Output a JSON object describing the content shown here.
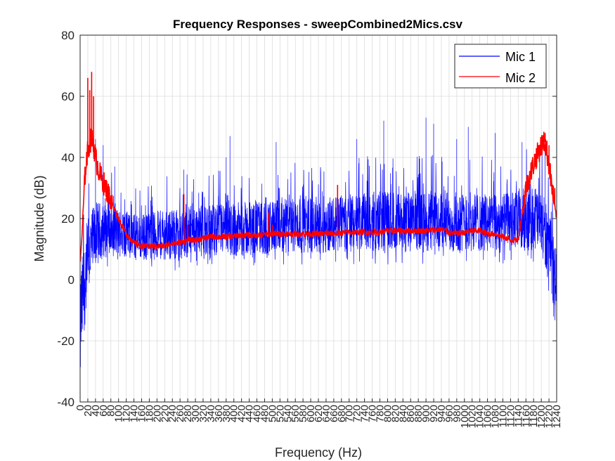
{
  "chart_data": {
    "type": "line",
    "title": "Frequency Responses - sweepCombined2Mics.csv",
    "xlabel": "Frequency (Hz)",
    "ylabel": "Magnitude (dB)",
    "xlim": [
      0,
      1240
    ],
    "ylim": [
      -40,
      80
    ],
    "yticks": [
      -40,
      -20,
      0,
      20,
      40,
      60,
      80
    ],
    "xticks": [
      0,
      20,
      40,
      60,
      80,
      100,
      120,
      140,
      160,
      180,
      200,
      220,
      240,
      260,
      280,
      300,
      320,
      340,
      360,
      380,
      400,
      420,
      440,
      460,
      480,
      500,
      520,
      540,
      560,
      580,
      600,
      620,
      640,
      660,
      680,
      700,
      720,
      740,
      760,
      780,
      800,
      820,
      840,
      860,
      880,
      900,
      920,
      940,
      960,
      980,
      1000,
      1020,
      1040,
      1060,
      1080,
      1100,
      1120,
      1140,
      1160,
      1180,
      1200,
      1220,
      1240
    ],
    "grid": true,
    "legend_position": "top-right",
    "series": [
      {
        "name": "Mic 1",
        "color": "#0000ff",
        "style": "noisy band",
        "x": [
          0,
          10,
          20,
          40,
          60,
          80,
          100,
          120,
          140,
          160,
          200,
          260,
          300,
          400,
          500,
          600,
          700,
          800,
          900,
          1000,
          1100,
          1150,
          1180,
          1200,
          1220,
          1230,
          1240
        ],
        "upper": [
          10,
          20,
          26,
          30,
          29,
          28,
          27,
          26,
          25,
          25,
          26,
          27,
          28,
          29,
          30,
          31,
          32,
          33,
          33,
          33,
          32,
          34,
          36,
          35,
          27,
          20,
          14
        ],
        "lower": [
          -38,
          -25,
          -12,
          0,
          3,
          4,
          4,
          4,
          3,
          3,
          3,
          3,
          4,
          4,
          4,
          5,
          5,
          5,
          5,
          5,
          5,
          5,
          5,
          3,
          -5,
          -12,
          -18
        ],
        "peaks": [
          [
            40,
            46
          ],
          [
            60,
            44
          ],
          [
            90,
            37
          ],
          [
            270,
            36
          ],
          [
            380,
            40
          ],
          [
            390,
            47
          ],
          [
            510,
            45
          ],
          [
            720,
            46
          ],
          [
            790,
            52
          ],
          [
            900,
            53
          ],
          [
            920,
            51
          ],
          [
            980,
            46
          ],
          [
            1010,
            50
          ],
          [
            1080,
            48
          ],
          [
            1150,
            45
          ],
          [
            1210,
            44
          ]
        ]
      },
      {
        "name": "Mic 2",
        "color": "#ff0000",
        "style": "thick noisy line",
        "x": [
          0,
          5,
          10,
          15,
          20,
          25,
          30,
          35,
          40,
          50,
          60,
          80,
          100,
          120,
          140,
          160,
          180,
          200,
          220,
          240,
          260,
          280,
          300,
          340,
          380,
          420,
          460,
          500,
          540,
          580,
          620,
          660,
          700,
          740,
          780,
          800,
          820,
          860,
          900,
          940,
          960,
          980,
          1000,
          1020,
          1040,
          1060,
          1080,
          1100,
          1120,
          1140,
          1160,
          1180,
          1200,
          1210,
          1220,
          1230,
          1240
        ],
        "y": [
          5,
          15,
          28,
          38,
          42,
          45,
          46,
          44,
          40,
          35,
          32,
          26,
          20,
          15,
          12,
          11,
          11,
          11,
          11,
          12,
          12,
          13,
          13,
          14,
          14,
          14.5,
          14.5,
          15,
          15,
          15,
          15,
          15,
          15.5,
          15.5,
          15.5,
          16,
          16,
          16,
          16,
          16.5,
          15.5,
          15,
          15.5,
          16,
          16,
          15,
          15,
          14,
          13,
          13,
          30,
          38,
          44,
          45,
          38,
          28,
          20
        ],
        "spikes": [
          [
            20,
            66
          ],
          [
            25,
            62
          ],
          [
            30,
            68
          ],
          [
            35,
            60
          ],
          [
            270,
            28
          ],
          [
            280,
            18
          ],
          [
            490,
            22
          ],
          [
            500,
            18
          ],
          [
            670,
            31
          ],
          [
            1210,
            48
          ],
          [
            1220,
            44
          ],
          [
            1235,
            30
          ]
        ]
      }
    ]
  }
}
